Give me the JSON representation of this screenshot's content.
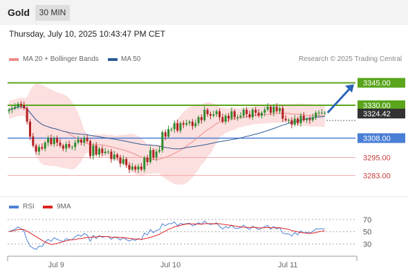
{
  "header": {
    "title": "Gold",
    "interval": "30 MIN"
  },
  "timestamp": "Thursday, July 10, 2025 10:43:47 PM CET",
  "legend": {
    "ma20": "MA 20 + Bollinger Bands",
    "ma50": "MA 50",
    "credit": "Research © 2025 Trading Central",
    "rsi": "RSI",
    "rsi_ma": "9MA"
  },
  "colors": {
    "ma20": "#f08a8a",
    "ma50": "#2b5a96",
    "band": "#fbd9d9",
    "up": "#2e8b2e",
    "down": "#b02020",
    "green_level": "#5aa51c",
    "blue_level": "#4a7fd6",
    "red_level": "#f2a8a8",
    "current": "#333333",
    "arrow": "#2d63b8",
    "rsi": "#4a7fd6",
    "rsi_ma": "#e02020"
  },
  "chart_data": {
    "type": "candlestick",
    "price_range": [
      3273,
      3355
    ],
    "current_price": "3324.42",
    "levels": [
      {
        "value": 3345.0,
        "label": "3345.00",
        "kind": "resistance-2",
        "style": "green-filled"
      },
      {
        "value": 3330.0,
        "label": "3330.00",
        "kind": "resistance-1",
        "style": "green-filled"
      },
      {
        "value": 3308.0,
        "label": "3308.00",
        "kind": "pivot",
        "style": "blue-filled"
      },
      {
        "value": 3295.0,
        "label": "3295.00",
        "kind": "support-1",
        "style": "red-text"
      },
      {
        "value": 3283.0,
        "label": "3283.00",
        "kind": "support-2",
        "style": "red-text"
      }
    ],
    "x_ticks": [
      {
        "label": "Jul 9",
        "index": 18
      },
      {
        "label": "Jul 10",
        "index": 56
      },
      {
        "label": "Jul 11",
        "index": 95
      }
    ],
    "close": [
      3327,
      3328,
      3329,
      3331,
      3330,
      3328,
      3319,
      3309,
      3303,
      3299,
      3302,
      3301,
      3305,
      3308,
      3304,
      3308,
      3305,
      3303,
      3301,
      3304,
      3302,
      3302,
      3305,
      3307,
      3305,
      3308,
      3306,
      3296,
      3303,
      3297,
      3301,
      3298,
      3299,
      3299,
      3294,
      3297,
      3295,
      3291,
      3294,
      3290,
      3287,
      3289,
      3287,
      3289,
      3287,
      3295,
      3292,
      3300,
      3295,
      3299,
      3300,
      3312,
      3309,
      3314,
      3314,
      3318,
      3313,
      3318,
      3317,
      3318,
      3319,
      3316,
      3318,
      3322,
      3320,
      3327,
      3324,
      3323,
      3324,
      3326,
      3322,
      3319,
      3323,
      3321,
      3326,
      3322,
      3322,
      3323,
      3327,
      3324,
      3322,
      3327,
      3325,
      3323,
      3325,
      3327,
      3329,
      3325,
      3329,
      3326,
      3328,
      3321,
      3320,
      3320,
      3317,
      3321,
      3318,
      3323,
      3320,
      3321,
      3320,
      3322,
      3325,
      3325,
      3325,
      3325
    ],
    "rsi": {
      "range": [
        10,
        80
      ],
      "ticks": [
        70,
        50,
        30
      ]
    }
  }
}
